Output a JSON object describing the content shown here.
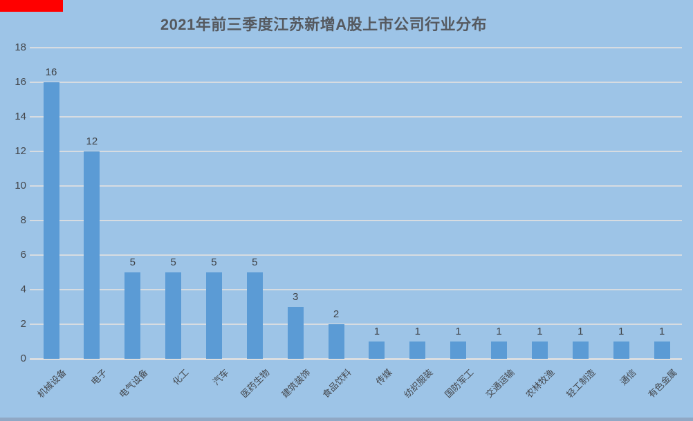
{
  "chart_data": {
    "type": "bar",
    "title": "2021年前三季度江苏新增A股上市公司行业分布",
    "categories": [
      "机械设备",
      "电子",
      "电气设备",
      "化工",
      "汽车",
      "医药生物",
      "建筑装饰",
      "食品饮料",
      "传媒",
      "纺织服装",
      "国防军工",
      "交通运输",
      "农林牧渔",
      "轻工制造",
      "通信",
      "有色金属"
    ],
    "values": [
      16,
      12,
      5,
      5,
      5,
      5,
      3,
      2,
      1,
      1,
      1,
      1,
      1,
      1,
      1,
      1
    ],
    "data_labels": [
      16,
      12,
      5,
      5,
      5,
      5,
      3,
      2,
      1,
      1,
      1,
      1,
      1,
      1,
      1,
      1
    ],
    "xlabel": "",
    "ylabel": "",
    "yticks": [
      0,
      2,
      4,
      6,
      8,
      10,
      12,
      14,
      16,
      18
    ],
    "ylim": [
      0,
      18
    ],
    "grid": true,
    "legend_position": "none"
  },
  "colors": {
    "background": "#9DC4E7",
    "bar": "#5B9BD5",
    "gridline": "#D7DCE1",
    "baseline": "#DADDE0",
    "title_text": "#55595F",
    "value_label_text": "#3F4246",
    "tick_text": "#44474C",
    "red_marker": "#FF0000",
    "bottom_strip": "#90A8C5"
  }
}
